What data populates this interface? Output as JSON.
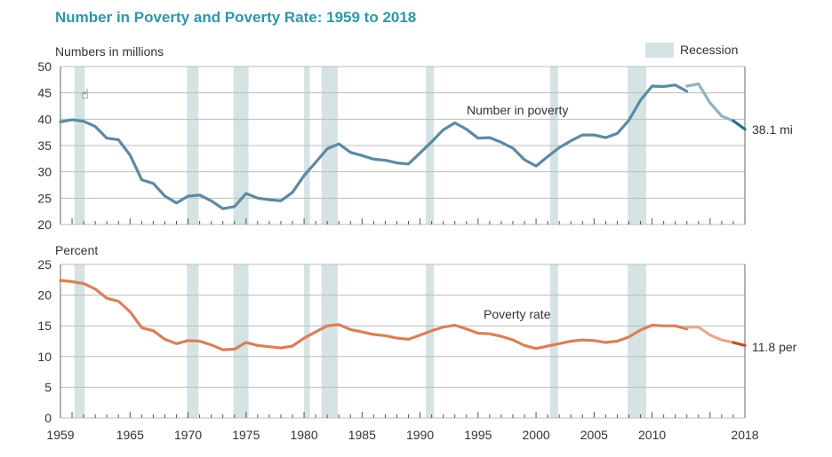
{
  "title": "Number in Poverty and Poverty Rate: 1959 to 2018",
  "legend": {
    "label": "Recession",
    "color": "#d5e3e5"
  },
  "colors": {
    "number_series": "#5b8aa3",
    "number_series_light": "#8fb1c4",
    "number_series_dark": "#2d6e8c",
    "rate_series": "#d9805a",
    "rate_series_light": "#e8a98d",
    "rate_series_dark": "#c0502e"
  },
  "chart_data": [
    {
      "type": "line",
      "ylabel": "Numbers in millions",
      "ylim": [
        20,
        50
      ],
      "yticks": [
        "20",
        "25",
        "30",
        "35",
        "40",
        "45",
        "50"
      ],
      "xlim": [
        1959,
        2018
      ],
      "grid": true,
      "recessions": [
        [
          1960.2,
          1961.1
        ],
        [
          1969.9,
          1970.9
        ],
        [
          1973.9,
          1975.2
        ],
        [
          1980.0,
          1980.5
        ],
        [
          1981.5,
          1982.9
        ],
        [
          1990.5,
          1991.2
        ],
        [
          2001.2,
          2001.9
        ],
        [
          2007.9,
          2009.5
        ]
      ],
      "annotation": "Number in poverty",
      "end_label": "38.1 mi",
      "series": [
        {
          "x": [
            1959,
            1960,
            1961,
            1962,
            1963,
            1964,
            1965,
            1966,
            1967,
            1968,
            1969,
            1970,
            1971,
            1972,
            1973,
            1974,
            1975,
            1976,
            1977,
            1978,
            1979,
            1980,
            1981,
            1982,
            1983,
            1984,
            1985,
            1986,
            1987,
            1988,
            1989,
            1990,
            1991,
            1992,
            1993,
            1994,
            1995,
            1996,
            1997,
            1998,
            1999,
            2000,
            2001,
            2002,
            2003,
            2004,
            2005,
            2006,
            2007,
            2008,
            2009,
            2010,
            2011,
            2012,
            2013
          ],
          "values": [
            39.5,
            39.9,
            39.6,
            38.6,
            36.4,
            36.1,
            33.2,
            28.5,
            27.8,
            25.4,
            24.1,
            25.4,
            25.6,
            24.5,
            23.0,
            23.4,
            25.9,
            25.0,
            24.7,
            24.5,
            26.1,
            29.3,
            31.8,
            34.4,
            35.3,
            33.7,
            33.1,
            32.4,
            32.2,
            31.7,
            31.5,
            33.6,
            35.7,
            38.0,
            39.3,
            38.1,
            36.4,
            36.5,
            35.6,
            34.5,
            32.3,
            31.1,
            32.9,
            34.6,
            35.9,
            37.0,
            37.0,
            36.5,
            37.3,
            39.8,
            43.6,
            46.3,
            46.2,
            46.5,
            45.3
          ]
        },
        {
          "x": [
            2013,
            2014,
            2015,
            2016,
            2017
          ],
          "values": [
            46.3,
            46.7,
            43.1,
            40.6,
            39.7
          ]
        },
        {
          "x": [
            2017,
            2018
          ],
          "values": [
            39.7,
            38.1
          ]
        }
      ]
    },
    {
      "type": "line",
      "ylabel": "Percent",
      "ylim": [
        0,
        25
      ],
      "yticks": [
        "0",
        "5",
        "10",
        "15",
        "20",
        "25"
      ],
      "xlim": [
        1959,
        2018
      ],
      "grid": true,
      "recessions": [
        [
          1960.2,
          1961.1
        ],
        [
          1969.9,
          1970.9
        ],
        [
          1973.9,
          1975.2
        ],
        [
          1980.0,
          1980.5
        ],
        [
          1981.5,
          1982.9
        ],
        [
          1990.5,
          1991.2
        ],
        [
          2001.2,
          2001.9
        ],
        [
          2007.9,
          2009.5
        ]
      ],
      "annotation": "Poverty rate",
      "end_label": "11.8 per",
      "xticks": [
        "1959",
        "1965",
        "1970",
        "1975",
        "1980",
        "1985",
        "1990",
        "1995",
        "2000",
        "2005",
        "2010",
        "2018"
      ],
      "series": [
        {
          "x": [
            1959,
            1960,
            1961,
            1962,
            1963,
            1964,
            1965,
            1966,
            1967,
            1968,
            1969,
            1970,
            1971,
            1972,
            1973,
            1974,
            1975,
            1976,
            1977,
            1978,
            1979,
            1980,
            1981,
            1982,
            1983,
            1984,
            1985,
            1986,
            1987,
            1988,
            1989,
            1990,
            1991,
            1992,
            1993,
            1994,
            1995,
            1996,
            1997,
            1998,
            1999,
            2000,
            2001,
            2002,
            2003,
            2004,
            2005,
            2006,
            2007,
            2008,
            2009,
            2010,
            2011,
            2012,
            2013
          ],
          "values": [
            22.4,
            22.2,
            21.9,
            21.0,
            19.5,
            19.0,
            17.3,
            14.7,
            14.2,
            12.8,
            12.1,
            12.6,
            12.5,
            11.9,
            11.1,
            11.2,
            12.3,
            11.8,
            11.6,
            11.4,
            11.7,
            13.0,
            14.0,
            15.0,
            15.2,
            14.4,
            14.0,
            13.6,
            13.4,
            13.0,
            12.8,
            13.5,
            14.2,
            14.8,
            15.1,
            14.5,
            13.8,
            13.7,
            13.3,
            12.7,
            11.8,
            11.3,
            11.7,
            12.1,
            12.5,
            12.7,
            12.6,
            12.3,
            12.5,
            13.2,
            14.3,
            15.1,
            15.0,
            15.0,
            14.5
          ]
        },
        {
          "x": [
            2013,
            2014,
            2015,
            2016,
            2017
          ],
          "values": [
            14.8,
            14.8,
            13.5,
            12.7,
            12.3
          ]
        },
        {
          "x": [
            2017,
            2018
          ],
          "values": [
            12.3,
            11.8
          ]
        }
      ]
    }
  ]
}
